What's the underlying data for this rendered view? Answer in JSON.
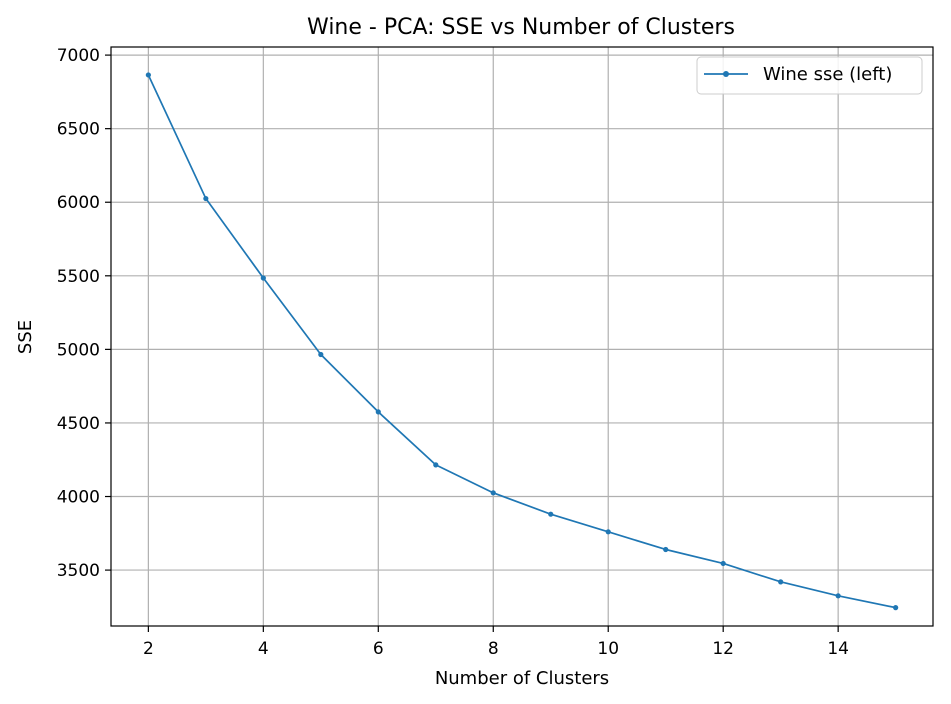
{
  "chart_data": {
    "type": "line",
    "title": "Wine - PCA: SSE vs Number of Clusters",
    "xlabel": "Number of Clusters",
    "ylabel": "SSE",
    "xlim": [
      1.35,
      15.65
    ],
    "ylim": [
      3120,
      7055
    ],
    "xticks": [
      2,
      4,
      6,
      8,
      10,
      12,
      14
    ],
    "yticks": [
      3500,
      4000,
      4500,
      5000,
      5500,
      6000,
      6500,
      7000
    ],
    "grid": true,
    "legend_position": "top-right",
    "line_color": "#1f77b4",
    "series": [
      {
        "name": "Wine sse (left)",
        "x": [
          2,
          3,
          4,
          5,
          6,
          7,
          8,
          9,
          10,
          11,
          12,
          13,
          14,
          15
        ],
        "y": [
          6865,
          6025,
          5485,
          4965,
          4575,
          4215,
          4025,
          3880,
          3760,
          3640,
          3545,
          3420,
          3325,
          3245
        ]
      }
    ]
  }
}
